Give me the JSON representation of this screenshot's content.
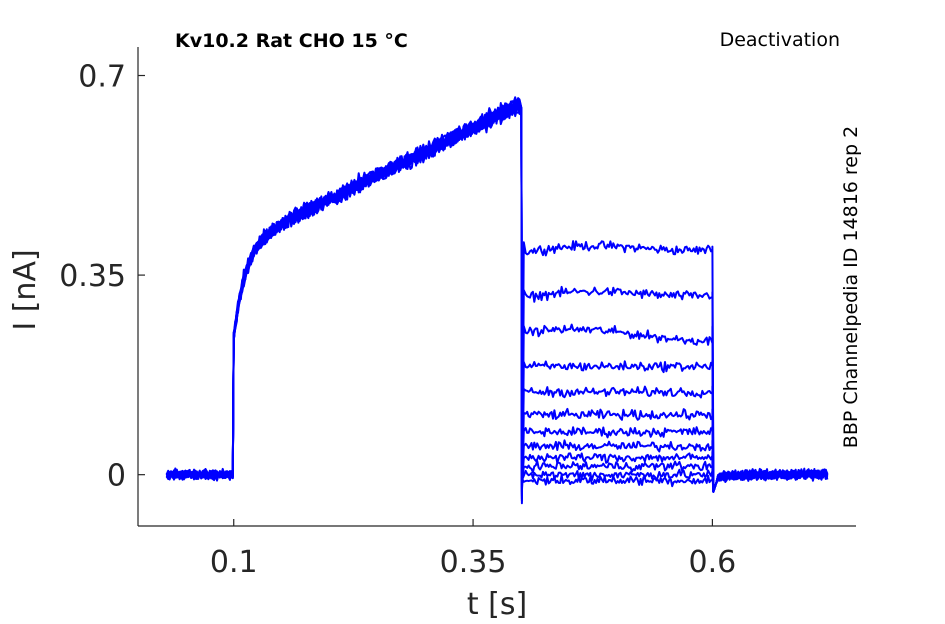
{
  "chart_data": {
    "type": "line",
    "title": "Kv10.2  Rat  CHO  15 °C",
    "protocol": "Deactivation",
    "source": "BBP Channelpedia ID 14816 rep 2",
    "xlabel": "t [s]",
    "ylabel": "I [nA]",
    "xlim": [
      0.0,
      0.75
    ],
    "ylim": [
      -0.09,
      0.75
    ],
    "xticks": [
      0.1,
      0.35,
      0.6
    ],
    "xtick_labels": [
      "0.1",
      "0.35",
      "0.6"
    ],
    "yticks": [
      0,
      0.35,
      0.7
    ],
    "ytick_labels": [
      "0",
      "0.35",
      "0.7"
    ],
    "grid": false,
    "trace_color": "#0000ff",
    "x_start": 0.03,
    "t_activation_on": 0.1,
    "t_step_on": 0.4,
    "t_step_off": 0.6,
    "x_end": 0.72,
    "baseline": 0.0,
    "activation_peak": 0.65,
    "tail_levels": [
      0.39,
      0.31,
      0.25,
      0.19,
      0.145,
      0.105,
      0.075,
      0.05,
      0.03,
      0.015,
      0.0,
      -0.01
    ],
    "series": [
      {
        "values": [
          0.0,
          0.62,
          0.39,
          0.0
        ]
      },
      {
        "values": [
          0.0,
          0.62,
          0.31,
          0.0
        ]
      },
      {
        "values": [
          0.0,
          0.62,
          0.25,
          0.0
        ]
      },
      {
        "values": [
          0.0,
          0.62,
          0.19,
          0.0
        ]
      },
      {
        "values": [
          0.0,
          0.62,
          0.145,
          0.0
        ]
      },
      {
        "values": [
          0.0,
          0.62,
          0.105,
          0.0
        ]
      },
      {
        "values": [
          0.0,
          0.62,
          0.075,
          0.0
        ]
      },
      {
        "values": [
          0.0,
          0.62,
          0.05,
          0.0
        ]
      },
      {
        "values": [
          0.0,
          0.62,
          0.03,
          0.0
        ]
      },
      {
        "values": [
          0.0,
          0.62,
          0.015,
          0.0
        ]
      },
      {
        "values": [
          0.0,
          0.62,
          0.0,
          0.0
        ]
      },
      {
        "values": [
          0.0,
          0.62,
          -0.01,
          0.0
        ]
      }
    ]
  }
}
